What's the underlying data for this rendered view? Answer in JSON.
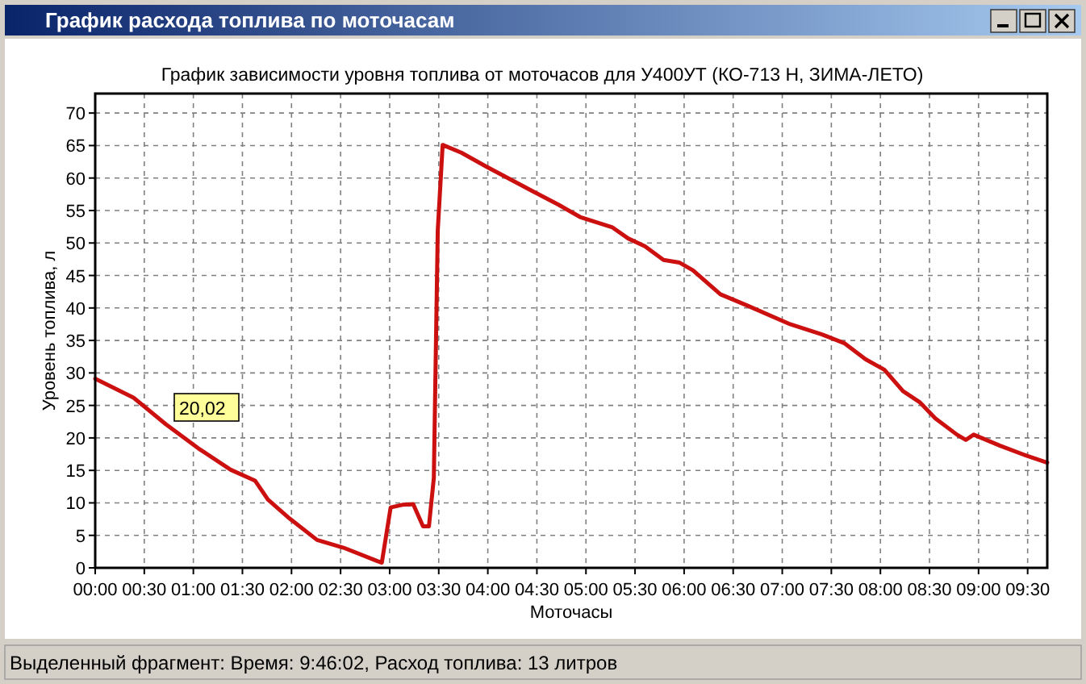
{
  "chart_data": {
    "type": "line",
    "title": "График расхода топлива по моточасам",
    "subtitle": "График зависимости уровня топлива от моточасов для У400УТ (КО-713 Н, ЗИМА-ЛЕТО)",
    "xlabel": "Моточасы",
    "ylabel": "Уровень топлива, л",
    "x": [
      0,
      0.39,
      0.72,
      1.05,
      1.38,
      1.63,
      1.76,
      1.98,
      2.26,
      2.53,
      2.88,
      2.92,
      3.01,
      3.13,
      3.24,
      3.34,
      3.4,
      3.45,
      3.49,
      3.54,
      3.73,
      3.98,
      4.34,
      4.44,
      4.72,
      4.94,
      5.27,
      5.43,
      5.6,
      5.79,
      5.95,
      6.09,
      6.37,
      6.64,
      7.08,
      7.41,
      7.63,
      7.85,
      8.04,
      8.23,
      8.4,
      8.56,
      8.78,
      8.87,
      8.95,
      9.22,
      9.5,
      9.7
    ],
    "series": [
      {
        "color": "#cc1010",
        "values": [
          29.1,
          26.2,
          22.1,
          18.4,
          15.1,
          13.4,
          10.5,
          7.6,
          4.3,
          3.1,
          1,
          0.8,
          9.3,
          9.7,
          9.8,
          6.4,
          6.4,
          13.8,
          51.9,
          65.1,
          63.9,
          61.8,
          58.9,
          58.1,
          55.9,
          54,
          52.4,
          50.7,
          49.5,
          47.4,
          47,
          45.8,
          42.1,
          40.4,
          37.5,
          35.9,
          34.6,
          32.1,
          30.5,
          27.2,
          25.5,
          23,
          20.5,
          19.7,
          20.5,
          18.8,
          17.2,
          16.2
        ]
      }
    ],
    "xlim": [
      0,
      9.7
    ],
    "ylim": [
      0,
      73
    ],
    "xticks": [
      {
        "value": 0,
        "label": "00:00"
      },
      {
        "value": 0.5,
        "label": "00:30"
      },
      {
        "value": 1,
        "label": "01:00"
      },
      {
        "value": 1.5,
        "label": "01:30"
      },
      {
        "value": 2,
        "label": "02:00"
      },
      {
        "value": 2.5,
        "label": "02:30"
      },
      {
        "value": 3,
        "label": "03:00"
      },
      {
        "value": 3.5,
        "label": "03:30"
      },
      {
        "value": 4,
        "label": "04:00"
      },
      {
        "value": 4.5,
        "label": "04:30"
      },
      {
        "value": 5,
        "label": "05:00"
      },
      {
        "value": 5.5,
        "label": "05:30"
      },
      {
        "value": 6,
        "label": "06:00"
      },
      {
        "value": 6.5,
        "label": "06:30"
      },
      {
        "value": 7,
        "label": "07:00"
      },
      {
        "value": 7.5,
        "label": "07:30"
      },
      {
        "value": 8,
        "label": "08:00"
      },
      {
        "value": 8.5,
        "label": "08:30"
      },
      {
        "value": 9,
        "label": "09:00"
      },
      {
        "value": 9.5,
        "label": "09:30"
      }
    ],
    "yticks": [
      0,
      5,
      10,
      15,
      20,
      25,
      30,
      35,
      40,
      45,
      50,
      55,
      60,
      65,
      70
    ],
    "grid": true,
    "line_style": "solid",
    "marker": "none",
    "annotations": [
      "20,02",
      "Выделенный фрагмент: Время: 9:46:02, Расход топлива: 13 литров"
    ]
  }
}
